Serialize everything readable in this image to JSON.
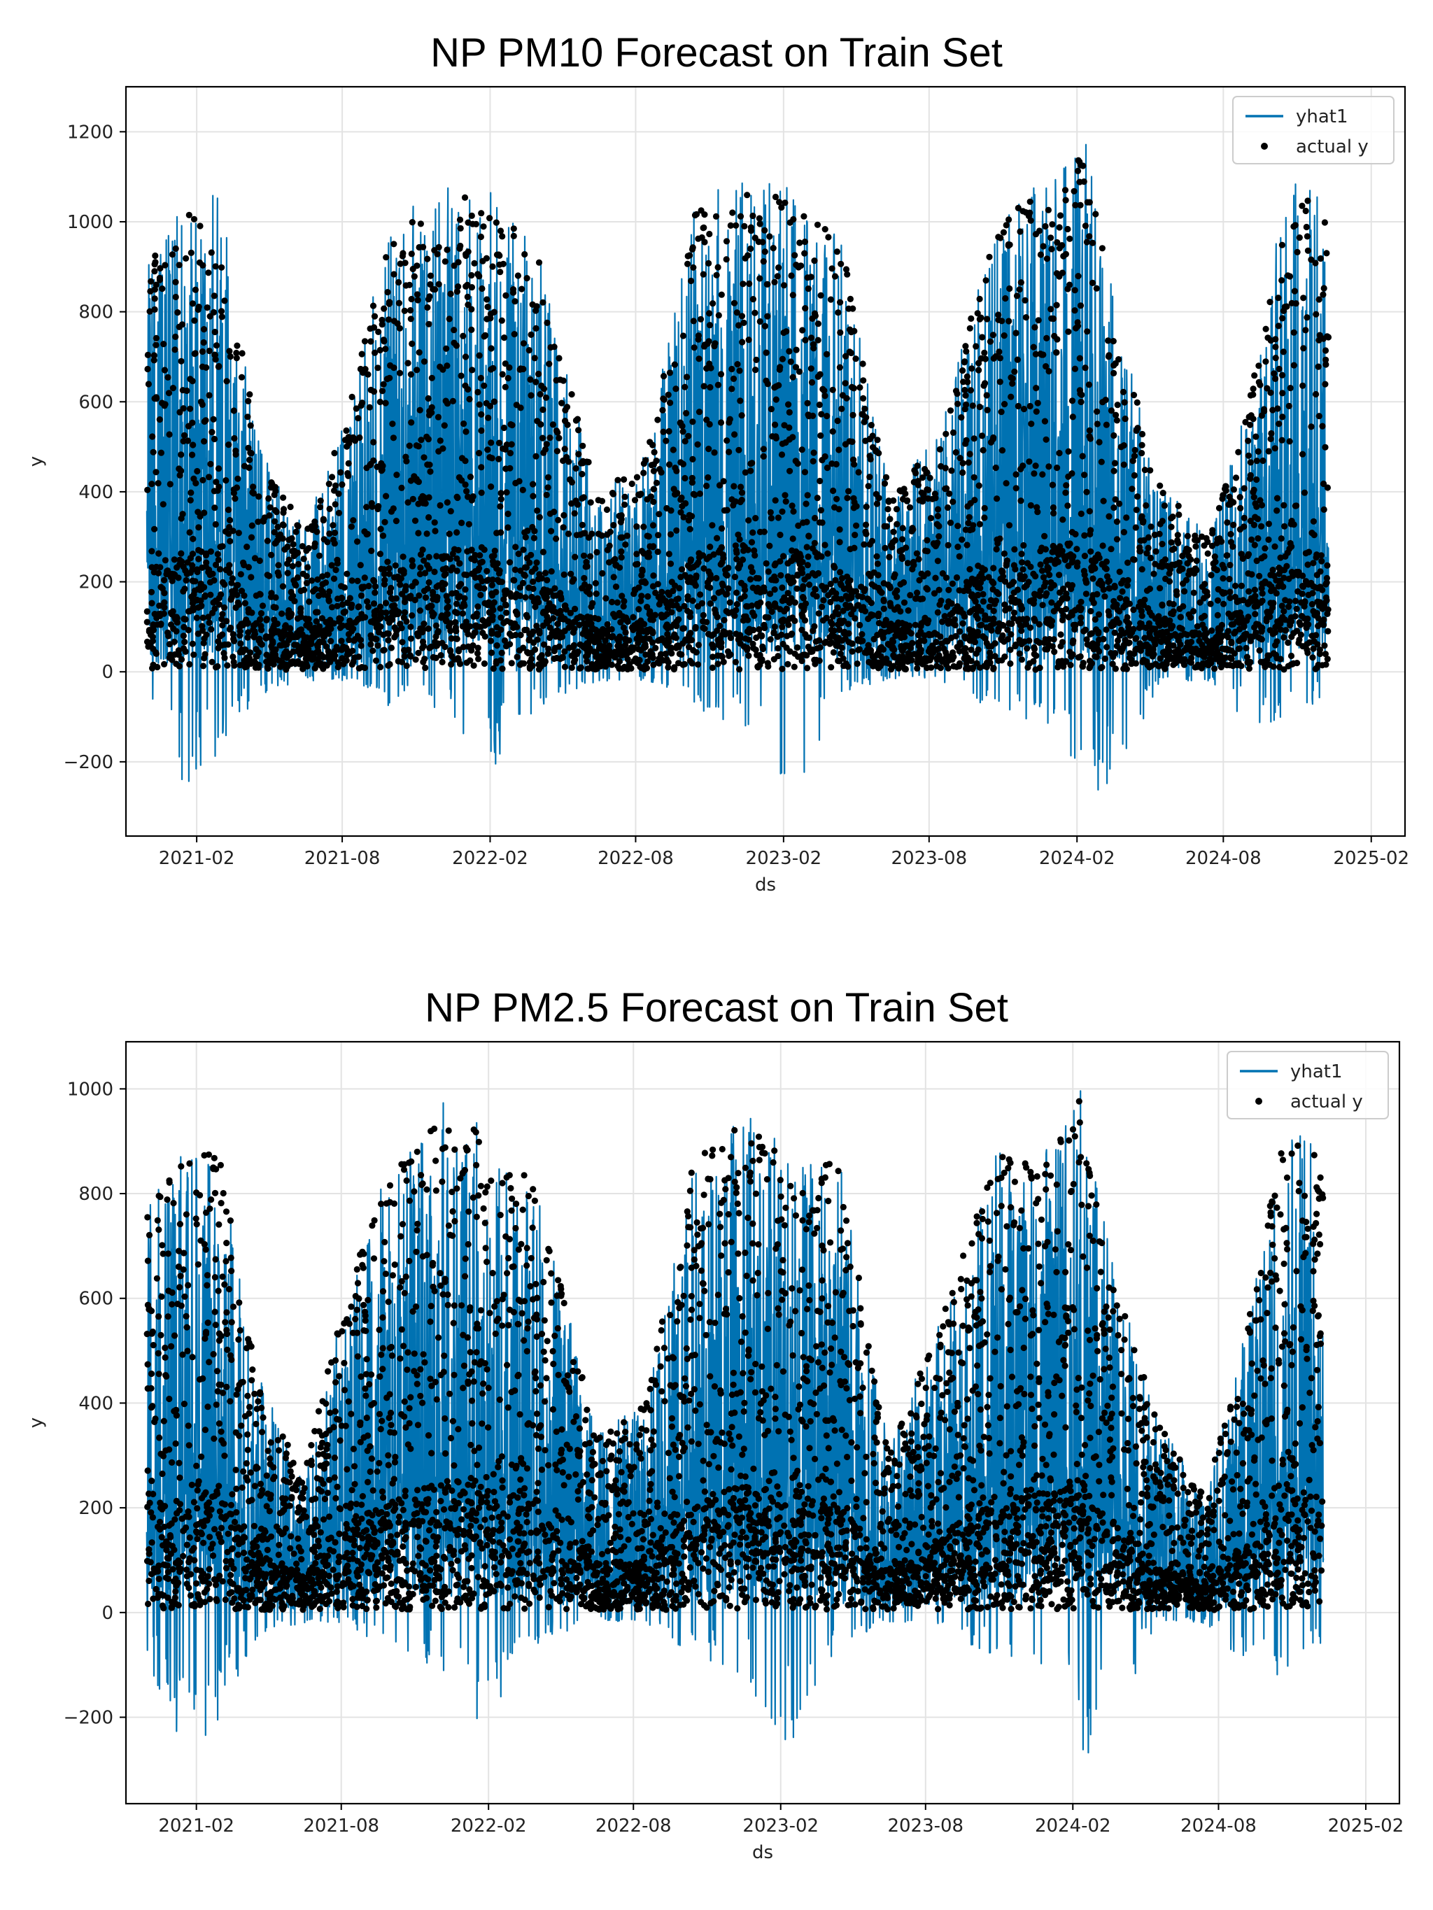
{
  "chart_data": [
    {
      "type": "line",
      "title": "NP PM10 Forecast on Train Set",
      "xlabel": "ds",
      "ylabel": "y",
      "ylim": [
        -365,
        1300
      ],
      "xlim": [
        "2020-11-05",
        "2025-03-15"
      ],
      "xticks": [
        "2021-02",
        "2021-08",
        "2022-02",
        "2022-08",
        "2023-02",
        "2023-08",
        "2024-02",
        "2024-08",
        "2025-02"
      ],
      "yticks": [
        -200,
        0,
        200,
        400,
        600,
        800,
        1000,
        1200
      ],
      "grid": true,
      "legend_position": "top-right",
      "series": [
        {
          "name": "yhat1",
          "kind": "line",
          "color": "#0072B2"
        },
        {
          "name": "actual y",
          "kind": "scatter",
          "color": "#000000"
        }
      ],
      "data_range": [
        "2020-12-01",
        "2024-12-10"
      ],
      "seasonal_envelope": [
        {
          "date": "2020-12-01",
          "high": 920,
          "low": -40
        },
        {
          "date": "2021-01-15",
          "high": 1050,
          "low": -270
        },
        {
          "date": "2021-03-01",
          "high": 1080,
          "low": -180
        },
        {
          "date": "2021-04-20",
          "high": 500,
          "low": -50
        },
        {
          "date": "2021-06-15",
          "high": 320,
          "low": -20
        },
        {
          "date": "2021-08-01",
          "high": 550,
          "low": -20
        },
        {
          "date": "2021-10-01",
          "high": 1000,
          "low": -80
        },
        {
          "date": "2021-12-15",
          "high": 1100,
          "low": -100
        },
        {
          "date": "2022-02-01",
          "high": 1070,
          "low": -230
        },
        {
          "date": "2022-04-01",
          "high": 950,
          "low": -80
        },
        {
          "date": "2022-06-15",
          "high": 400,
          "low": -20
        },
        {
          "date": "2022-08-15",
          "high": 500,
          "low": -20
        },
        {
          "date": "2022-10-15",
          "high": 1050,
          "low": -80
        },
        {
          "date": "2022-12-20",
          "high": 1100,
          "low": -150
        },
        {
          "date": "2023-02-10",
          "high": 1080,
          "low": -290
        },
        {
          "date": "2023-04-15",
          "high": 1000,
          "low": -50
        },
        {
          "date": "2023-06-15",
          "high": 380,
          "low": -20
        },
        {
          "date": "2023-08-15",
          "high": 560,
          "low": -20
        },
        {
          "date": "2023-11-01",
          "high": 1060,
          "low": -100
        },
        {
          "date": "2024-01-05",
          "high": 1100,
          "low": -120
        },
        {
          "date": "2024-02-10",
          "high": 1220,
          "low": -280
        },
        {
          "date": "2024-03-20",
          "high": 800,
          "low": -250
        },
        {
          "date": "2024-05-15",
          "high": 420,
          "low": -20
        },
        {
          "date": "2024-07-15",
          "high": 300,
          "low": -20
        },
        {
          "date": "2024-09-01",
          "high": 600,
          "low": -120
        },
        {
          "date": "2024-10-20",
          "high": 1100,
          "low": -110
        },
        {
          "date": "2024-12-10",
          "high": 1070,
          "low": -50
        }
      ]
    },
    {
      "type": "line",
      "title": "NP PM2.5 Forecast on Train Set",
      "xlabel": "ds",
      "ylabel": "y",
      "ylim": [
        -365,
        1090
      ],
      "xlim": [
        "2020-11-05",
        "2025-03-15"
      ],
      "xticks": [
        "2021-02",
        "2021-08",
        "2022-02",
        "2022-08",
        "2023-02",
        "2023-08",
        "2024-02",
        "2024-08",
        "2025-02"
      ],
      "yticks": [
        -200,
        0,
        200,
        400,
        600,
        800,
        1000
      ],
      "grid": true,
      "legend_position": "top-right",
      "series": [
        {
          "name": "yhat1",
          "kind": "line",
          "color": "#0072B2"
        },
        {
          "name": "actual y",
          "kind": "scatter",
          "color": "#000000"
        }
      ],
      "data_range": [
        "2020-12-01",
        "2024-12-10"
      ],
      "seasonal_envelope": [
        {
          "date": "2020-12-01",
          "high": 780,
          "low": -80
        },
        {
          "date": "2021-01-15",
          "high": 900,
          "low": -300
        },
        {
          "date": "2021-03-01",
          "high": 900,
          "low": -210
        },
        {
          "date": "2021-04-20",
          "high": 450,
          "low": -40
        },
        {
          "date": "2021-06-15",
          "high": 260,
          "low": -20
        },
        {
          "date": "2021-08-01",
          "high": 600,
          "low": -20
        },
        {
          "date": "2021-10-01",
          "high": 860,
          "low": -80
        },
        {
          "date": "2021-12-15",
          "high": 990,
          "low": -120
        },
        {
          "date": "2022-02-01",
          "high": 930,
          "low": -255
        },
        {
          "date": "2022-04-01",
          "high": 850,
          "low": -60
        },
        {
          "date": "2022-06-15",
          "high": 350,
          "low": -20
        },
        {
          "date": "2022-08-15",
          "high": 400,
          "low": -20
        },
        {
          "date": "2022-10-15",
          "high": 890,
          "low": -80
        },
        {
          "date": "2022-12-20",
          "high": 960,
          "low": -130
        },
        {
          "date": "2023-02-10",
          "high": 880,
          "low": -300
        },
        {
          "date": "2023-04-15",
          "high": 880,
          "low": -60
        },
        {
          "date": "2023-06-15",
          "high": 320,
          "low": -20
        },
        {
          "date": "2023-08-15",
          "high": 550,
          "low": -20
        },
        {
          "date": "2023-11-01",
          "high": 900,
          "low": -100
        },
        {
          "date": "2024-01-05",
          "high": 890,
          "low": -120
        },
        {
          "date": "2024-02-10",
          "high": 1020,
          "low": -300
        },
        {
          "date": "2024-03-20",
          "high": 680,
          "low": -230
        },
        {
          "date": "2024-05-15",
          "high": 380,
          "low": -20
        },
        {
          "date": "2024-07-15",
          "high": 220,
          "low": -20
        },
        {
          "date": "2024-09-01",
          "high": 520,
          "low": -100
        },
        {
          "date": "2024-10-20",
          "high": 930,
          "low": -140
        },
        {
          "date": "2024-12-10",
          "high": 890,
          "low": -70
        }
      ]
    }
  ]
}
